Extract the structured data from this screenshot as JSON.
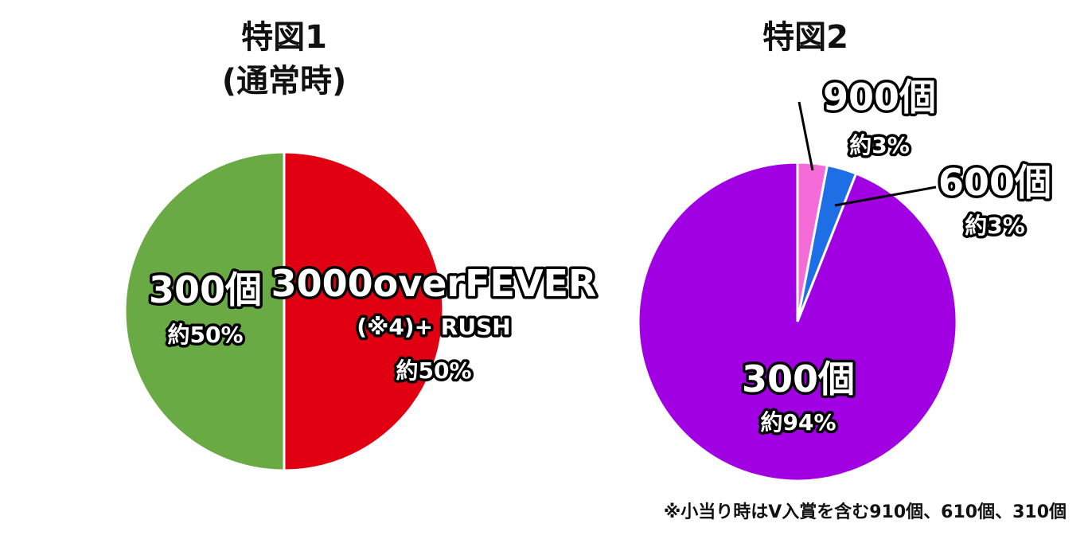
{
  "chart_data": [
    {
      "type": "pie",
      "title": "特図1",
      "subtitle": "(通常時)",
      "slices": [
        {
          "label": "3000overFEVER",
          "label2": "(※4)+ RUSH",
          "pct_label": "約50%",
          "value": 50,
          "color": "#e00012"
        },
        {
          "label": "300個",
          "pct_label": "約50%",
          "value": 50,
          "color": "#6aaa44"
        }
      ]
    },
    {
      "type": "pie",
      "title": "特図2",
      "slices": [
        {
          "label": "900個",
          "pct_label": "約3%",
          "value": 3,
          "color": "#f56cd8"
        },
        {
          "label": "600個",
          "pct_label": "約3%",
          "value": 3,
          "color": "#1e6ee6"
        },
        {
          "label": "300個",
          "pct_label": "約94%",
          "value": 94,
          "color": "#a100e3"
        }
      ]
    }
  ],
  "note": "※小当り時はV入賞を含む910個、610個、310個"
}
